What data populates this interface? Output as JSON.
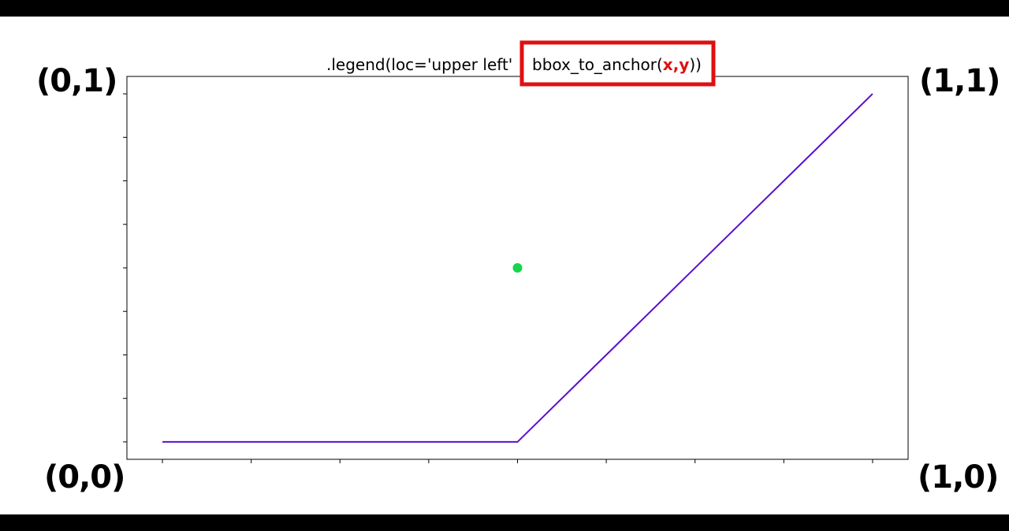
{
  "corners": {
    "top_left": "(0,1)",
    "top_right": "(1,1)",
    "bottom_left": "(0,0)",
    "bottom_right": "(1,0)"
  },
  "title": {
    "prefix": ".legend(loc='upper left'",
    "separator": ",",
    "func_open": "bbox_to_anchor(",
    "x": "x",
    "comma": ",",
    "y": "y",
    "close": "))"
  },
  "colors": {
    "line": "#5b0fd0",
    "marker": "#17d44a",
    "highlight_box": "#e01010",
    "highlight_text": "#e01010"
  },
  "chart_data": {
    "type": "line",
    "x": [
      0,
      0.5,
      1
    ],
    "y": [
      0,
      0,
      1
    ],
    "marker_point": {
      "x": 0.5,
      "y": 0.5
    },
    "xlim": [
      -0.05,
      1.05
    ],
    "ylim": [
      -0.05,
      1.05
    ],
    "x_ticks": [
      0,
      0.125,
      0.25,
      0.375,
      0.5,
      0.625,
      0.75,
      0.875,
      1
    ],
    "y_ticks": [
      0,
      0.125,
      0.25,
      0.375,
      0.5,
      0.625,
      0.75,
      0.875,
      1
    ],
    "grid": false,
    "title": ".legend(loc='upper left', bbox_to_anchor(x,y))"
  }
}
